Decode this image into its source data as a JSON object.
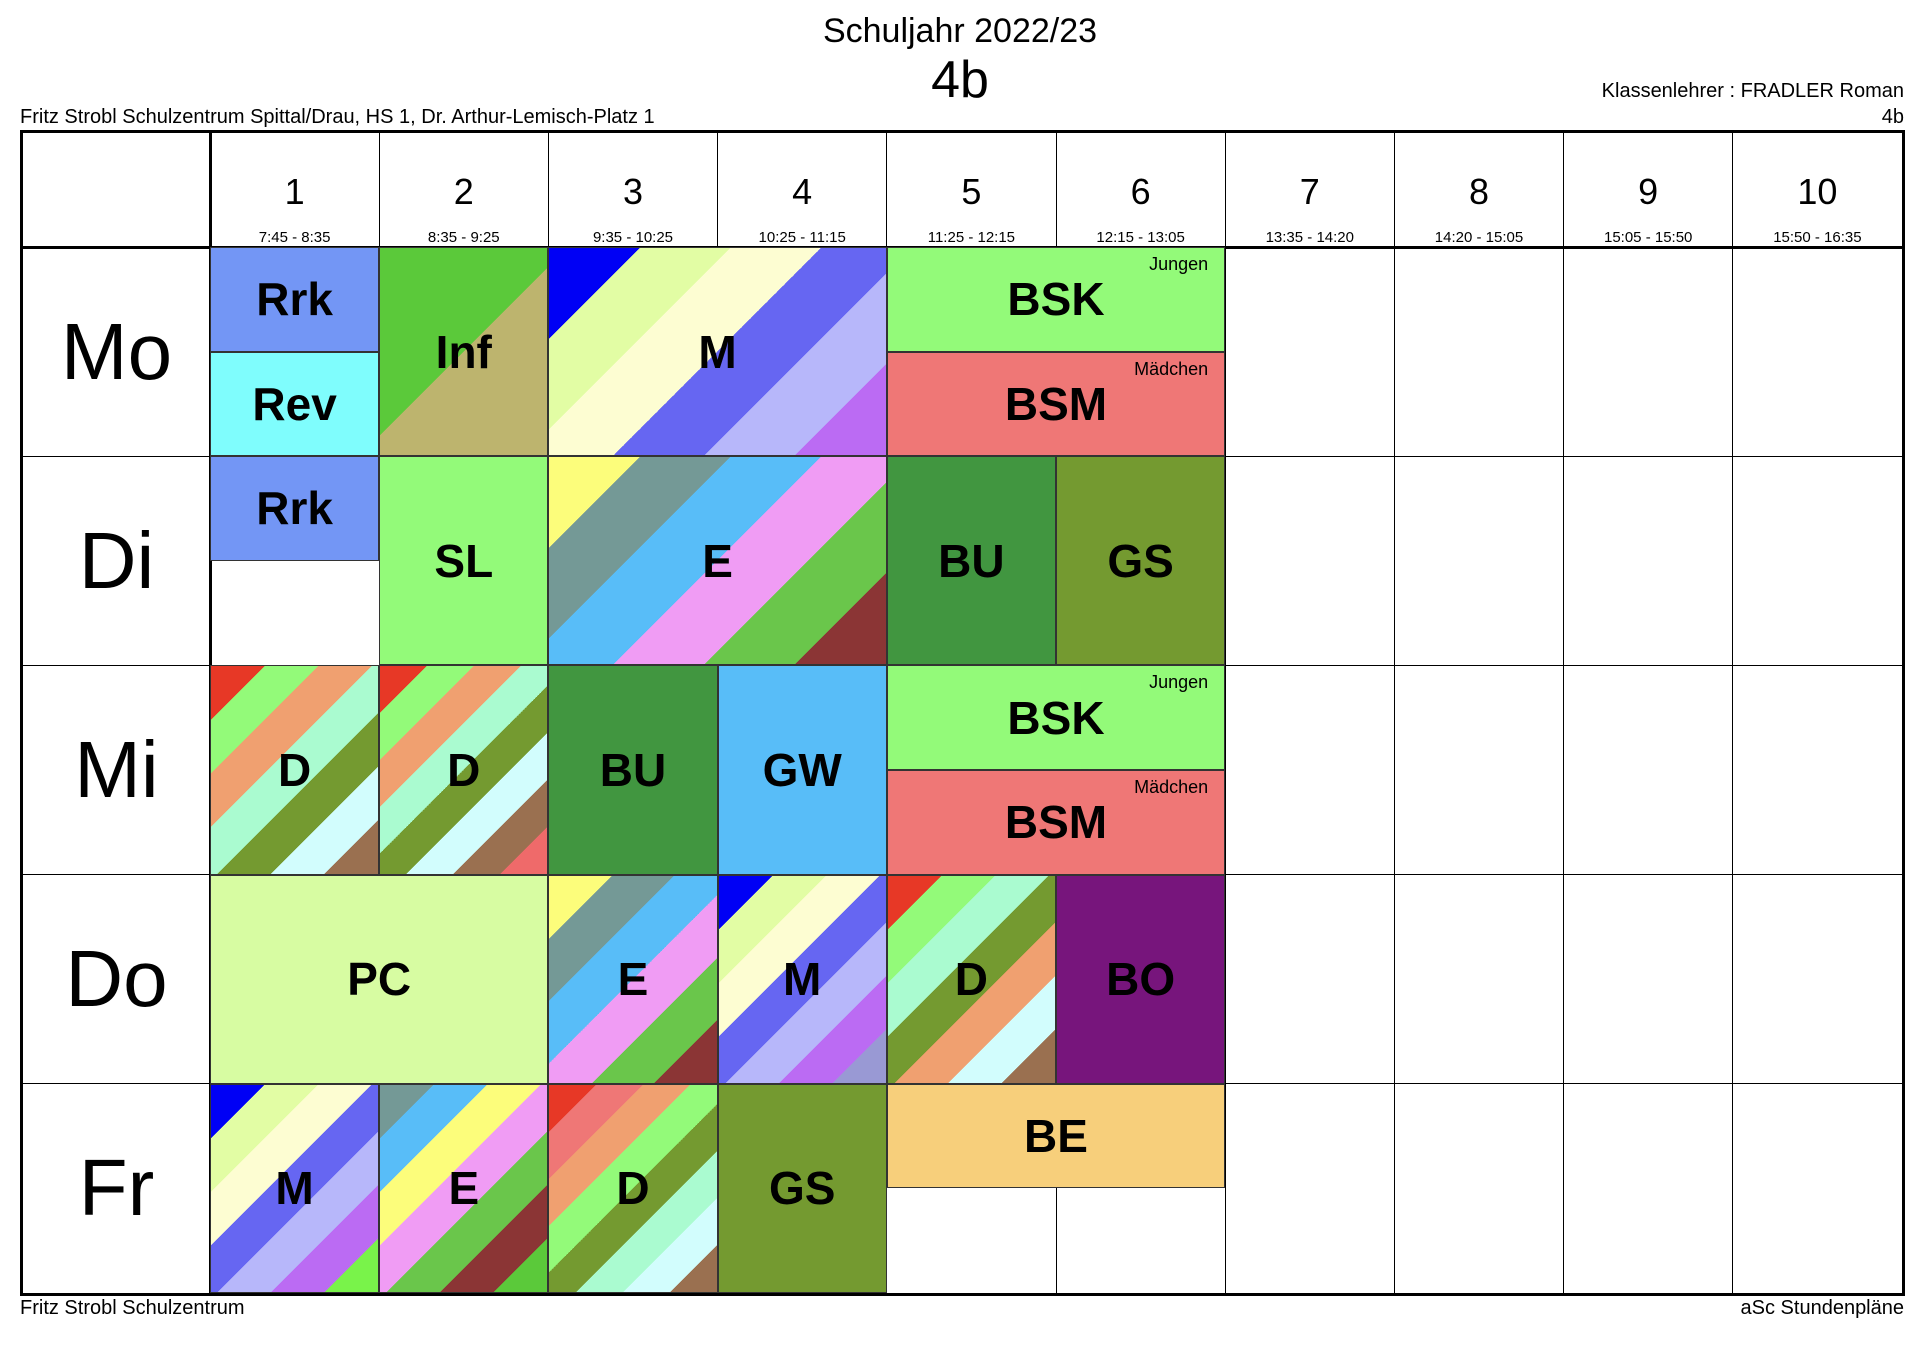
{
  "header": {
    "year": "Schuljahr 2022/23",
    "class": "4b",
    "school": "Fritz Strobl Schulzentrum Spittal/Drau, HS 1, Dr. Arthur-Lemisch-Platz 1",
    "teacher": "Klassenlehrer : FRADLER Roman",
    "teacher_class": "4b"
  },
  "footer": {
    "left": "Fritz Strobl Schulzentrum",
    "right": "aSc Stundenpläne"
  },
  "periods": [
    {
      "num": "1",
      "time": "7:45 - 8:35"
    },
    {
      "num": "2",
      "time": "8:35 - 9:25"
    },
    {
      "num": "3",
      "time": "9:35 - 10:25"
    },
    {
      "num": "4",
      "time": "10:25 - 11:15"
    },
    {
      "num": "5",
      "time": "11:25 - 12:15"
    },
    {
      "num": "6",
      "time": "12:15 - 13:05"
    },
    {
      "num": "7",
      "time": "13:35 - 14:20"
    },
    {
      "num": "8",
      "time": "14:20 - 15:05"
    },
    {
      "num": "9",
      "time": "15:05 - 15:50"
    },
    {
      "num": "10",
      "time": "15:50 - 16:35"
    }
  ],
  "days": [
    "Mo",
    "Di",
    "Mi",
    "Do",
    "Fr"
  ],
  "lessons": [
    {
      "day": 0,
      "start": 0,
      "span": 1,
      "half": "top",
      "subject": "Rrk",
      "colors": [
        "#7396f5"
      ]
    },
    {
      "day": 0,
      "start": 0,
      "span": 1,
      "half": "bottom",
      "subject": "Rev",
      "colors": [
        "#7ffdfd"
      ]
    },
    {
      "day": 0,
      "start": 1,
      "span": 1,
      "half": "full",
      "subject": "Inf",
      "colors": [
        "#5bc93a",
        "#bdb46e"
      ]
    },
    {
      "day": 0,
      "start": 2,
      "span": 2,
      "half": "full",
      "subject": "M",
      "colors": [
        "#0000f5",
        "#e2fda4",
        "#fdfdd2",
        "#6666f2",
        "#b7b7fa",
        "#bb6bf3"
      ]
    },
    {
      "day": 0,
      "start": 4,
      "span": 2,
      "half": "top",
      "subject": "BSK",
      "group": "Jungen",
      "colors": [
        "#93fa79"
      ]
    },
    {
      "day": 0,
      "start": 4,
      "span": 2,
      "half": "bottom",
      "subject": "BSM",
      "group": "Mädchen",
      "colors": [
        "#ef7776"
      ]
    },
    {
      "day": 1,
      "start": 0,
      "span": 1,
      "half": "top",
      "subject": "Rrk",
      "colors": [
        "#7396f5"
      ]
    },
    {
      "day": 1,
      "start": 1,
      "span": 1,
      "half": "full",
      "subject": "SL",
      "colors": [
        "#93fa79"
      ]
    },
    {
      "day": 1,
      "start": 2,
      "span": 2,
      "half": "full",
      "subject": "E",
      "colors": [
        "#fcfd7b",
        "#749996",
        "#58bdf8",
        "#f09cf4",
        "#6ac64b",
        "#8b3535"
      ]
    },
    {
      "day": 1,
      "start": 4,
      "span": 1,
      "half": "full",
      "subject": "BU",
      "colors": [
        "#419640"
      ]
    },
    {
      "day": 1,
      "start": 5,
      "span": 1,
      "half": "full",
      "subject": "GS",
      "colors": [
        "#749a30"
      ]
    },
    {
      "day": 2,
      "start": 0,
      "span": 1,
      "half": "full",
      "subject": "D",
      "colors": [
        "#e73826",
        "#93fa79",
        "#f0a070",
        "#aafbd0",
        "#749a30",
        "#d2fdfd",
        "#9a7050"
      ]
    },
    {
      "day": 2,
      "start": 1,
      "span": 1,
      "half": "full",
      "subject": "D",
      "colors": [
        "#e73826",
        "#93fa79",
        "#f0a070",
        "#aafbd0",
        "#749a30",
        "#d2fdfd",
        "#9a7050",
        "#ef6a6a"
      ]
    },
    {
      "day": 2,
      "start": 2,
      "span": 1,
      "half": "full",
      "subject": "BU",
      "colors": [
        "#419640"
      ]
    },
    {
      "day": 2,
      "start": 3,
      "span": 1,
      "half": "full",
      "subject": "GW",
      "colors": [
        "#58bdf8"
      ]
    },
    {
      "day": 2,
      "start": 4,
      "span": 2,
      "half": "top",
      "subject": "BSK",
      "group": "Jungen",
      "colors": [
        "#93fa79"
      ]
    },
    {
      "day": 2,
      "start": 4,
      "span": 2,
      "half": "bottom",
      "subject": "BSM",
      "group": "Mädchen",
      "colors": [
        "#ef7776"
      ]
    },
    {
      "day": 3,
      "start": 0,
      "span": 2,
      "half": "full",
      "subject": "PC",
      "colors": [
        "#d7fca2"
      ]
    },
    {
      "day": 3,
      "start": 2,
      "span": 1,
      "half": "full",
      "subject": "E",
      "colors": [
        "#fcfd7b",
        "#749996",
        "#58bdf8",
        "#f09cf4",
        "#6ac64b",
        "#8b3535"
      ]
    },
    {
      "day": 3,
      "start": 3,
      "span": 1,
      "half": "full",
      "subject": "M",
      "colors": [
        "#0000f5",
        "#e2fda4",
        "#fdfdd2",
        "#6666f2",
        "#b7b7fa",
        "#bb6bf3",
        "#9999d4"
      ]
    },
    {
      "day": 3,
      "start": 4,
      "span": 1,
      "half": "full",
      "subject": "D",
      "colors": [
        "#e73826",
        "#93fa79",
        "#aafbd0",
        "#749a30",
        "#f0a070",
        "#d2fdfd",
        "#9a7050"
      ]
    },
    {
      "day": 3,
      "start": 5,
      "span": 1,
      "half": "full",
      "subject": "BO",
      "colors": [
        "#77157c"
      ]
    },
    {
      "day": 4,
      "start": 0,
      "span": 1,
      "half": "full",
      "subject": "M",
      "colors": [
        "#0000f5",
        "#e2fda4",
        "#fdfdd2",
        "#6666f2",
        "#b7b7fa",
        "#bb6bf3",
        "#79f34a"
      ]
    },
    {
      "day": 4,
      "start": 1,
      "span": 1,
      "half": "full",
      "subject": "E",
      "colors": [
        "#749996",
        "#58bdf8",
        "#fcfd7b",
        "#f09cf4",
        "#6ac64b",
        "#8b3535",
        "#5bc93a"
      ]
    },
    {
      "day": 4,
      "start": 2,
      "span": 1,
      "half": "full",
      "subject": "D",
      "colors": [
        "#e73826",
        "#ef7776",
        "#f0a070",
        "#93fa79",
        "#749a30",
        "#aafbd0",
        "#d2fdfd",
        "#9a7050"
      ]
    },
    {
      "day": 4,
      "start": 3,
      "span": 1,
      "half": "full",
      "subject": "GS",
      "colors": [
        "#749a30"
      ]
    },
    {
      "day": 4,
      "start": 4,
      "span": 2,
      "half": "top",
      "subject": "BE",
      "colors": [
        "#f7cf7b"
      ]
    }
  ]
}
